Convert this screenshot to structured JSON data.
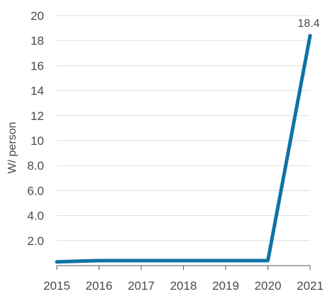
{
  "chart_data": {
    "type": "line",
    "title": "",
    "xlabel": "",
    "ylabel": "W/ person",
    "categories": [
      "2015",
      "2016",
      "2017",
      "2018",
      "2019",
      "2020",
      "2021"
    ],
    "series": [
      {
        "values": [
          0.3,
          0.4,
          0.4,
          0.4,
          0.4,
          0.4,
          18.4
        ],
        "color": "#0f72a6"
      }
    ],
    "ylim": [
      0,
      20
    ],
    "yticks": [
      2,
      4,
      6,
      8,
      10,
      12,
      14,
      16,
      18,
      20
    ],
    "ytick_labels": [
      "2.0",
      "4.0",
      "6.0",
      "8.0",
      "10",
      "12",
      "14",
      "16",
      "18",
      "20"
    ],
    "grid": "horizontal",
    "grid_color": "#dedede",
    "axis_color": "#555555",
    "data_labels": [
      {
        "category": "2021",
        "value": 18.4,
        "text": "18.4"
      }
    ]
  }
}
